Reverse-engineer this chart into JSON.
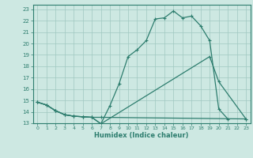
{
  "xlabel": "Humidex (Indice chaleur)",
  "line_color": "#2d7d6e",
  "background_color": "#cde8e2",
  "grid_color": "#a0c8c0",
  "xlim": [
    -0.5,
    23.5
  ],
  "ylim": [
    13,
    23.4
  ],
  "xticks": [
    0,
    1,
    2,
    3,
    4,
    5,
    6,
    7,
    8,
    9,
    10,
    11,
    12,
    13,
    14,
    15,
    16,
    17,
    18,
    19,
    20,
    21,
    22,
    23
  ],
  "yticks": [
    13,
    14,
    15,
    16,
    17,
    18,
    19,
    20,
    21,
    22,
    23
  ],
  "curve1_x": [
    0,
    1,
    2,
    3,
    4,
    5,
    6,
    7,
    8,
    9,
    10,
    11,
    12,
    13,
    14,
    15,
    16,
    17,
    18,
    19,
    20,
    21
  ],
  "curve1_y": [
    14.85,
    14.6,
    14.1,
    13.75,
    13.62,
    13.57,
    13.52,
    12.95,
    14.55,
    16.45,
    18.85,
    19.45,
    20.25,
    22.15,
    22.25,
    22.85,
    22.25,
    22.4,
    21.55,
    20.25,
    14.25,
    13.38
  ],
  "curve2_x": [
    0,
    1,
    2,
    3,
    4,
    5,
    6,
    7,
    19,
    20,
    23
  ],
  "curve2_y": [
    14.85,
    14.6,
    14.1,
    13.75,
    13.62,
    13.57,
    13.52,
    12.95,
    18.85,
    16.65,
    13.38
  ],
  "curve3_x": [
    0,
    1,
    2,
    3,
    4,
    5,
    6,
    7,
    23
  ],
  "curve3_y": [
    14.85,
    14.6,
    14.1,
    13.75,
    13.62,
    13.57,
    13.52,
    13.52,
    13.38
  ]
}
